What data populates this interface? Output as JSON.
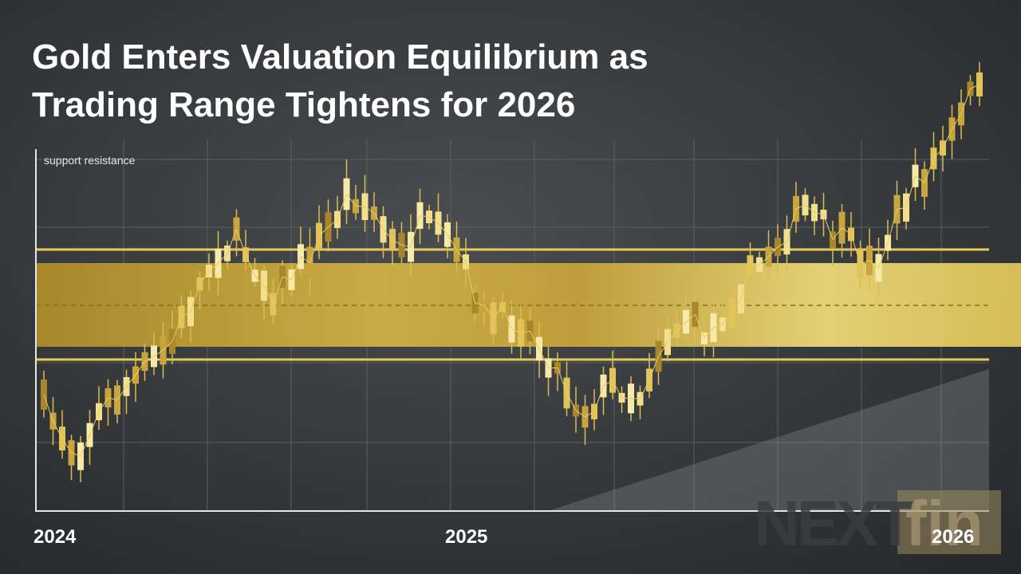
{
  "headline": {
    "line1": "Gold Enters Valuation Equilibrium as",
    "line2": "Trading Range Tightens for 2026"
  },
  "chart": {
    "legend": "support resistance",
    "x_labels": [
      "2024",
      "2025",
      "2026"
    ]
  },
  "logo": {
    "part1": "NEXT",
    "part2": "fin"
  }
}
